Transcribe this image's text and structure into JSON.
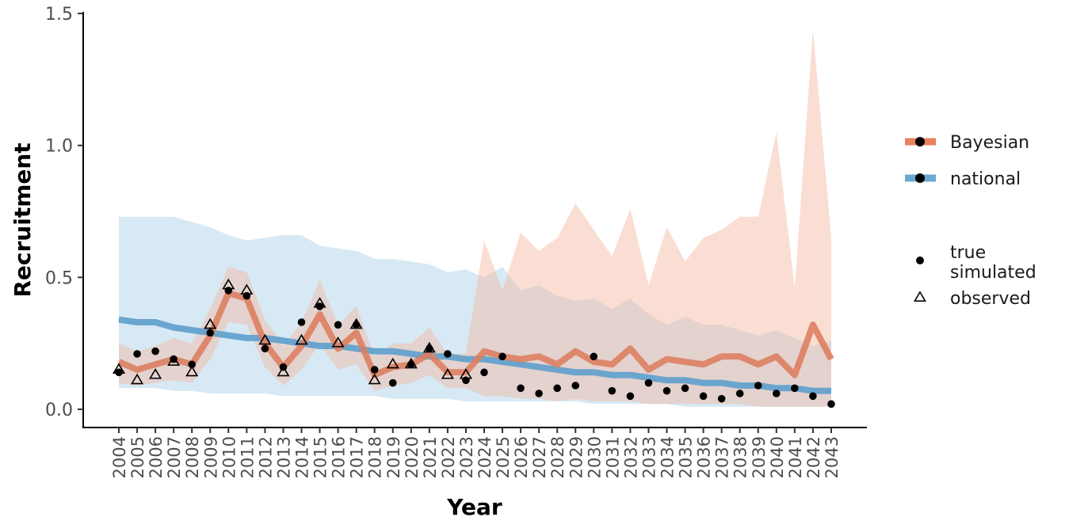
{
  "chart_data": {
    "type": "line",
    "xlabel": "Year",
    "ylabel": "Recruitment",
    "ylim": [
      -0.07,
      1.5
    ],
    "y_ticks": [
      0.0,
      0.5,
      1.0,
      1.5
    ],
    "y_tick_labels": [
      "0.0",
      "0.5",
      "1.0",
      "1.5"
    ],
    "x": [
      2004,
      2005,
      2006,
      2007,
      2008,
      2009,
      2010,
      2011,
      2012,
      2013,
      2014,
      2015,
      2016,
      2017,
      2018,
      2019,
      2020,
      2021,
      2022,
      2023,
      2024,
      2025,
      2026,
      2027,
      2028,
      2029,
      2030,
      2031,
      2032,
      2033,
      2034,
      2035,
      2036,
      2037,
      2038,
      2039,
      2040,
      2041,
      2042,
      2043
    ],
    "series": [
      {
        "name": "Bayesian",
        "color": "#e8825f",
        "values": [
          0.18,
          0.15,
          0.17,
          0.19,
          0.17,
          0.28,
          0.44,
          0.42,
          0.25,
          0.16,
          0.24,
          0.36,
          0.23,
          0.29,
          0.13,
          0.16,
          0.17,
          0.21,
          0.14,
          0.14,
          0.22,
          0.2,
          0.19,
          0.2,
          0.17,
          0.22,
          0.18,
          0.17,
          0.23,
          0.15,
          0.19,
          0.18,
          0.17,
          0.2,
          0.2,
          0.17,
          0.2,
          0.13,
          0.32,
          0.19
        ],
        "lower": [
          0.1,
          0.09,
          0.1,
          0.11,
          0.1,
          0.19,
          0.33,
          0.32,
          0.16,
          0.09,
          0.15,
          0.25,
          0.15,
          0.17,
          0.07,
          0.09,
          0.1,
          0.13,
          0.08,
          0.08,
          0.05,
          0.05,
          0.04,
          0.04,
          0.03,
          0.04,
          0.03,
          0.03,
          0.03,
          0.02,
          0.02,
          0.02,
          0.02,
          0.02,
          0.02,
          0.01,
          0.01,
          0.01,
          0.01,
          0.01
        ],
        "upper": [
          0.25,
          0.22,
          0.24,
          0.27,
          0.25,
          0.38,
          0.54,
          0.52,
          0.34,
          0.24,
          0.33,
          0.49,
          0.32,
          0.39,
          0.2,
          0.25,
          0.25,
          0.31,
          0.21,
          0.21,
          0.64,
          0.45,
          0.67,
          0.6,
          0.65,
          0.78,
          0.68,
          0.58,
          0.76,
          0.47,
          0.69,
          0.56,
          0.65,
          0.68,
          0.73,
          0.73,
          1.05,
          0.46,
          1.44,
          0.65
        ]
      },
      {
        "name": "national",
        "color": "#6aaad2",
        "values": [
          0.34,
          0.33,
          0.33,
          0.31,
          0.3,
          0.29,
          0.28,
          0.27,
          0.27,
          0.26,
          0.25,
          0.24,
          0.24,
          0.23,
          0.22,
          0.22,
          0.21,
          0.2,
          0.2,
          0.19,
          0.19,
          0.18,
          0.17,
          0.16,
          0.15,
          0.14,
          0.14,
          0.13,
          0.13,
          0.12,
          0.11,
          0.11,
          0.1,
          0.1,
          0.09,
          0.09,
          0.08,
          0.08,
          0.07,
          0.07
        ],
        "lower": [
          0.08,
          0.08,
          0.08,
          0.07,
          0.07,
          0.06,
          0.06,
          0.06,
          0.06,
          0.05,
          0.05,
          0.05,
          0.05,
          0.05,
          0.05,
          0.04,
          0.04,
          0.04,
          0.04,
          0.03,
          0.03,
          0.03,
          0.03,
          0.03,
          0.03,
          0.03,
          0.02,
          0.02,
          0.02,
          0.02,
          0.02,
          0.01,
          0.01,
          0.01,
          0.01,
          0.01,
          0.01,
          0.01,
          0.01,
          0.01
        ],
        "upper": [
          0.73,
          0.73,
          0.73,
          0.73,
          0.71,
          0.69,
          0.66,
          0.64,
          0.65,
          0.66,
          0.66,
          0.62,
          0.61,
          0.6,
          0.57,
          0.57,
          0.56,
          0.55,
          0.52,
          0.53,
          0.5,
          0.54,
          0.45,
          0.47,
          0.43,
          0.41,
          0.42,
          0.38,
          0.42,
          0.36,
          0.32,
          0.35,
          0.32,
          0.32,
          0.3,
          0.28,
          0.3,
          0.27,
          0.24,
          0.26
        ]
      }
    ],
    "true_simulated": [
      0.14,
      0.21,
      0.22,
      0.19,
      0.17,
      0.29,
      0.45,
      0.43,
      0.23,
      0.16,
      0.33,
      0.39,
      0.32,
      0.32,
      0.15,
      0.1,
      0.17,
      0.23,
      0.21,
      0.11,
      0.14,
      0.2,
      0.08,
      0.06,
      0.08,
      0.09,
      0.2,
      0.07,
      0.05,
      0.1,
      0.07,
      0.08,
      0.05,
      0.04,
      0.06,
      0.09,
      0.06,
      0.08,
      0.05,
      0.02
    ],
    "observed": [
      0.15,
      0.11,
      0.13,
      0.18,
      0.14,
      0.32,
      0.47,
      0.45,
      0.26,
      0.14,
      0.26,
      0.4,
      0.25,
      0.32,
      0.11,
      0.17,
      0.17,
      0.23,
      0.13,
      0.13
    ],
    "legend": {
      "position": "right",
      "groups": [
        {
          "entries": [
            {
              "label": "Bayesian",
              "symbol": "line-dot",
              "color": "#e8825f"
            },
            {
              "label": "national",
              "symbol": "line-dot",
              "color": "#6aaad2"
            }
          ]
        },
        {
          "entries": [
            {
              "label": "true\nsimulated",
              "symbol": "dot"
            },
            {
              "label": "observed",
              "symbol": "triangle"
            }
          ]
        }
      ]
    },
    "grid": false
  }
}
